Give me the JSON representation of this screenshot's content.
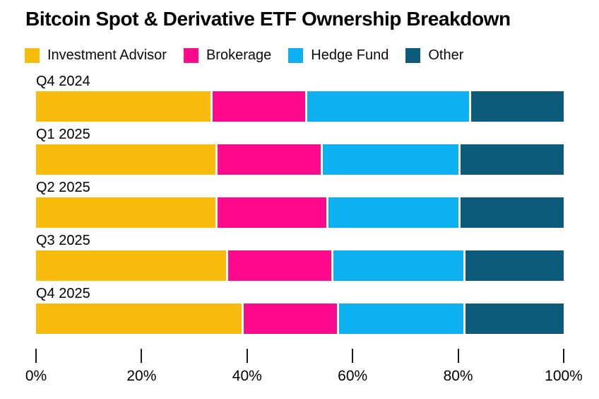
{
  "title": "Bitcoin Spot & Derivative ETF Ownership Breakdown",
  "colors": {
    "background": "#ffffff",
    "text": "#000000",
    "tick": "#1a1a1a",
    "investment_advisor": "#F9BC0D",
    "brokerage": "#FF0A8C",
    "hedge_fund": "#0DB1F2",
    "other": "#0E5A7D"
  },
  "chart_data": {
    "type": "bar",
    "variant": "horizontal-stacked",
    "title": "Bitcoin Spot & Derivative ETF Ownership Breakdown",
    "unit": "%",
    "xlim": [
      0,
      100
    ],
    "x_ticks": [
      "0%",
      "20%",
      "40%",
      "60%",
      "80%",
      "100%"
    ],
    "grid": false,
    "legend_position": "top",
    "categories": [
      "Q4 2024",
      "Q1 2025",
      "Q2 2025",
      "Q3 2025",
      "Q4 2025"
    ],
    "series": [
      {
        "name": "Investment Advisor",
        "color": "#F9BC0D",
        "values": [
          33,
          34,
          34,
          36,
          39
        ]
      },
      {
        "name": "Brokerage",
        "color": "#FF0A8C",
        "values": [
          18,
          20,
          21,
          20,
          18
        ]
      },
      {
        "name": "Hedge Fund",
        "color": "#0DB1F2",
        "values": [
          31,
          26,
          25,
          25,
          24
        ]
      },
      {
        "name": "Other",
        "color": "#0E5A7D",
        "values": [
          18,
          20,
          20,
          19,
          19
        ]
      }
    ]
  }
}
